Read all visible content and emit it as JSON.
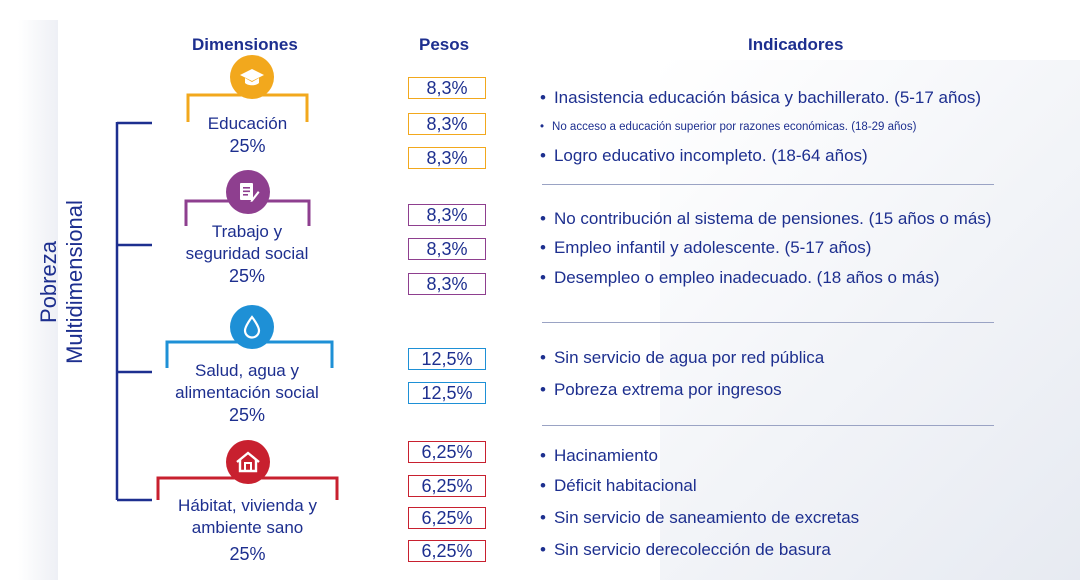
{
  "headers": {
    "dimensiones": "Dimensiones",
    "pesos": "Pesos",
    "indicadores": "Indicadores"
  },
  "root": {
    "line1": "Pobreza",
    "line2": "Multidimensional"
  },
  "dimensions": [
    {
      "label_lines": [
        "Educación"
      ],
      "pct": "25%",
      "icon": "graduation-cap-icon",
      "color": "#f2a81d",
      "weights": [
        "8,3%",
        "8,3%",
        "8,3%"
      ],
      "indicators": [
        "Inasistencia educación básica y bachillerato. (5-17 años)",
        "No acceso a educación superior por razones económicas. (18-29 años)",
        "Logro educativo incompleto. (18-64 años)"
      ]
    },
    {
      "label_lines": [
        "Trabajo y",
        "seguridad social"
      ],
      "pct": "25%",
      "icon": "document-pen-icon",
      "color": "#8e3f8f",
      "weights": [
        "8,3%",
        "8,3%",
        "8,3%"
      ],
      "indicators": [
        "No contribución al sistema de pensiones. (15 años o más)",
        "Empleo infantil y adolescente. (5-17 años)",
        "Desempleo o empleo inadecuado. (18 años o más)"
      ]
    },
    {
      "label_lines": [
        "Salud, agua y",
        "alimentación social"
      ],
      "pct": "25%",
      "icon": "water-drop-icon",
      "color": "#1e90d6",
      "weights": [
        "12,5%",
        "12,5%"
      ],
      "indicators": [
        "Sin servicio de agua por red pública",
        "Pobreza extrema por ingresos"
      ]
    },
    {
      "label_lines": [
        "Hábitat, vivienda y",
        "ambiente sano"
      ],
      "pct": "25%",
      "icon": "house-icon",
      "color": "#c8202f",
      "weights": [
        "6,25%",
        "6,25%",
        "6,25%",
        "6,25%"
      ],
      "indicators": [
        "Hacinamiento",
        "Déficit habitacional",
        "Sin servicio de saneamiento de excretas",
        "Sin servicio derecolección de basura"
      ]
    }
  ],
  "colors": {
    "navy": "#1d2f8f",
    "edu": "#f2a81d",
    "work": "#8e3f8f",
    "health": "#1e90d6",
    "habitat": "#c8202f"
  }
}
